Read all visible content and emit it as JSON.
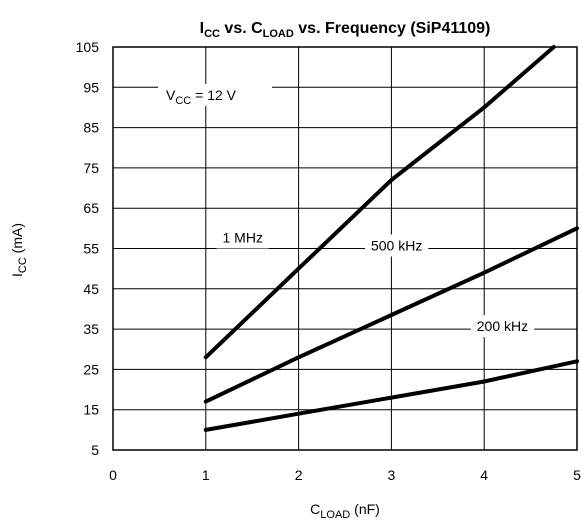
{
  "chart_data": {
    "type": "line",
    "title": {
      "main1": "I",
      "sub1": "CC",
      "main2": " vs. C",
      "sub2": "LOAD",
      "main3": " vs. Frequency (SiP41109)"
    },
    "xlabel": {
      "main": "C",
      "sub": "LOAD",
      "rest": " (nF)"
    },
    "ylabel": {
      "main": "I",
      "sub": "CC",
      "rest": " (mA)"
    },
    "xlim": [
      0,
      5
    ],
    "ylim": [
      5,
      105
    ],
    "x_ticks": [
      "0",
      "1",
      "2",
      "3",
      "4",
      "5"
    ],
    "y_ticks": [
      "5",
      "15",
      "25",
      "35",
      "45",
      "55",
      "65",
      "75",
      "85",
      "95",
      "105"
    ],
    "grid": true,
    "annotations": {
      "vcc": {
        "main": "V",
        "sub": "CC",
        "rest": " = 12 V"
      }
    },
    "series": [
      {
        "name": "1 MHz",
        "x": [
          1,
          2,
          3,
          4,
          4.75
        ],
        "y": [
          28,
          50,
          72,
          90,
          105
        ]
      },
      {
        "name": "500 kHz",
        "x": [
          1,
          2,
          3,
          4,
          5
        ],
        "y": [
          17,
          28,
          38.5,
          49,
          60
        ]
      },
      {
        "name": "200 kHz",
        "x": [
          1,
          2,
          3,
          4,
          5
        ],
        "y": [
          10,
          14,
          18,
          22,
          27
        ]
      }
    ]
  }
}
